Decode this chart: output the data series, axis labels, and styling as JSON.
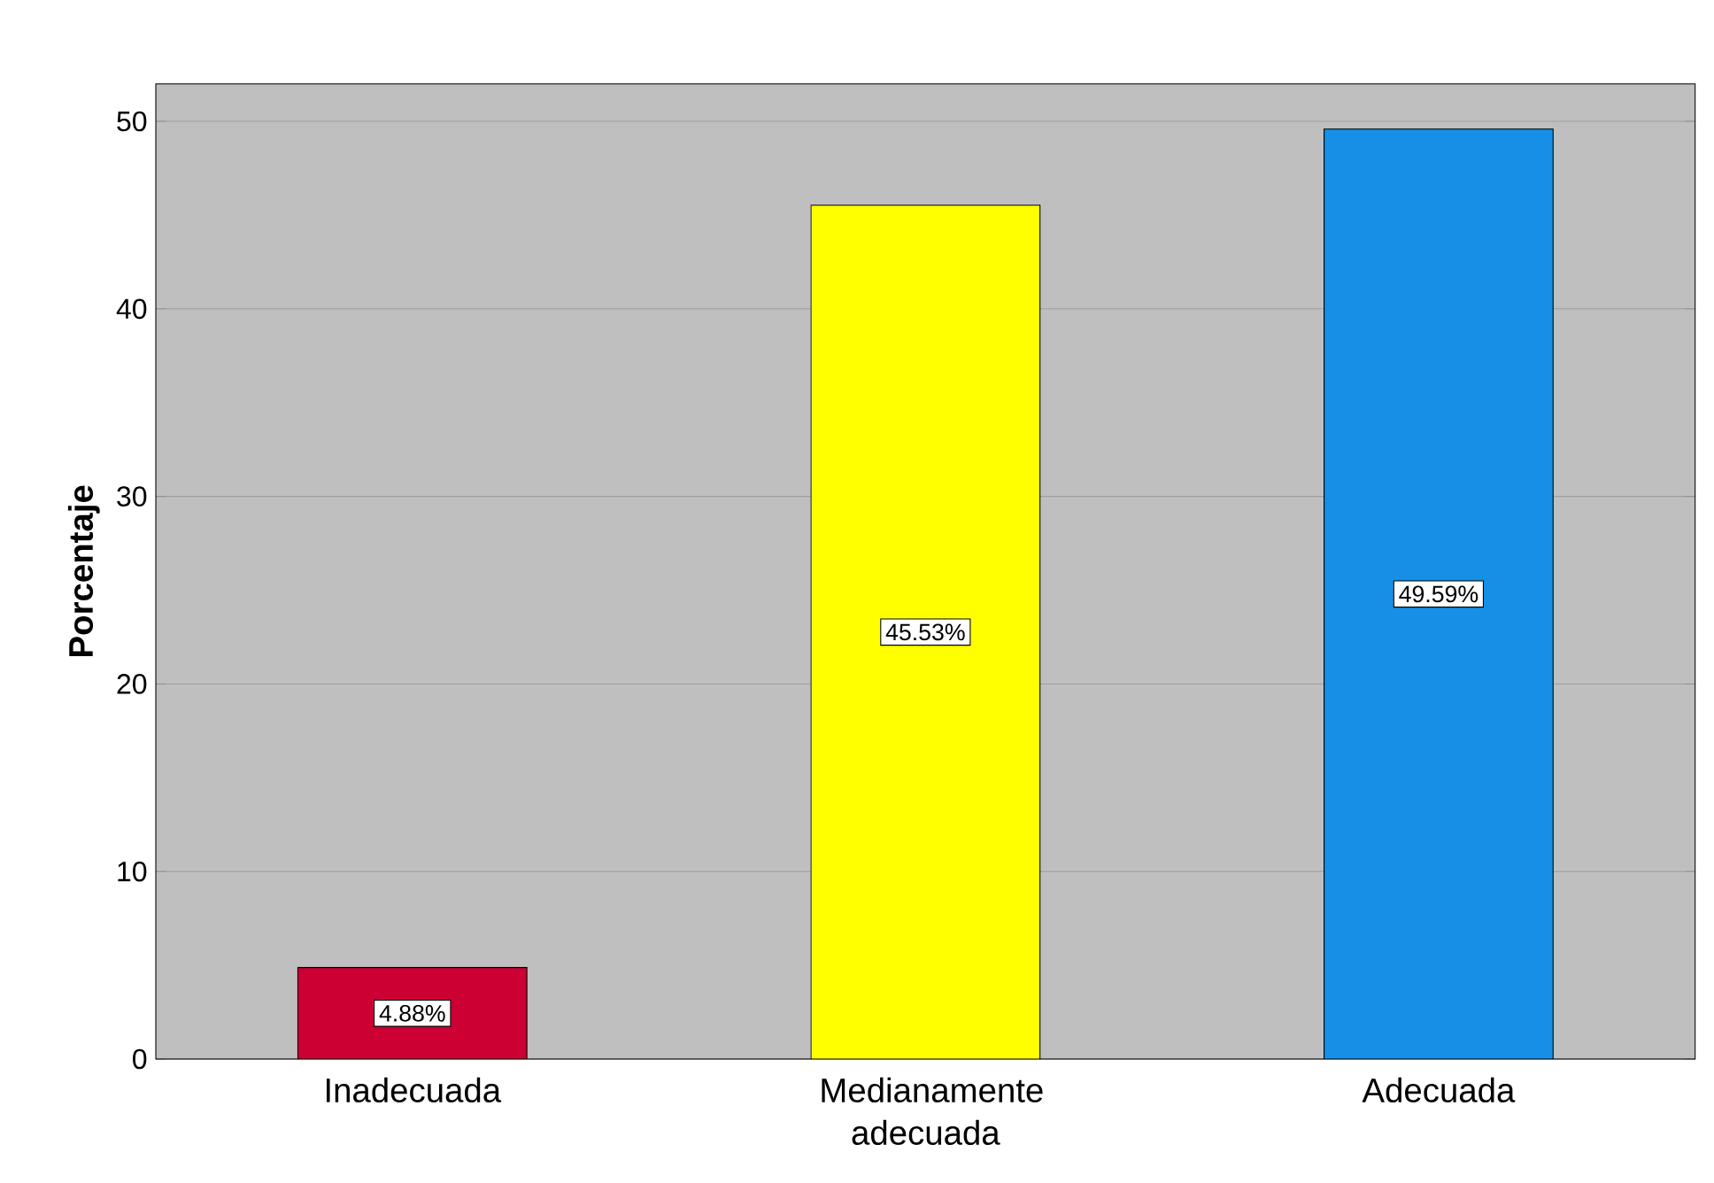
{
  "chart_data": {
    "type": "bar",
    "ylabel": "Porcentaje",
    "categories": [
      "Inadecuada",
      "Medianamente adecuada",
      "Adecuada"
    ],
    "values": [
      4.88,
      45.53,
      49.59
    ],
    "colors": [
      "#cc0033",
      "#ffff00",
      "#1590e6"
    ],
    "value_labels": [
      "4.88%",
      "45.53%",
      "49.59%"
    ],
    "ylim": [
      0,
      52
    ],
    "yticks": [
      0,
      10,
      20,
      30,
      40,
      50
    ],
    "grid": "y"
  }
}
